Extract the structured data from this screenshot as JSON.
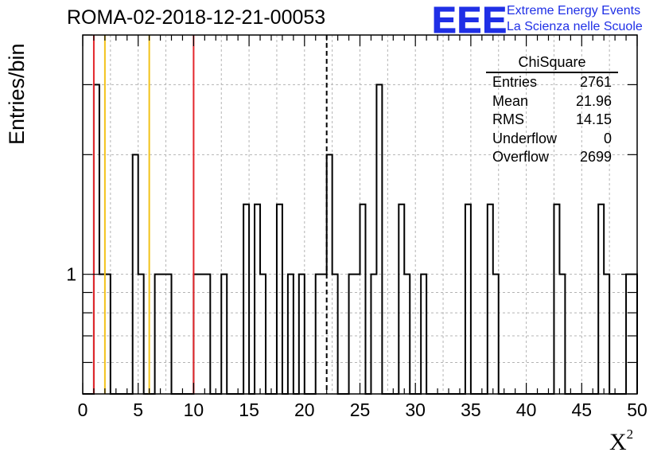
{
  "header": {
    "title": "ROMA-02-2018-12-21-00053",
    "logo_text": "EEE",
    "tagline_line1": "Extreme Energy Events",
    "tagline_line2": "La Scienza nelle Scuole"
  },
  "stats": {
    "name": "ChiSquare",
    "rows": [
      {
        "label": "Entries",
        "value": "2761"
      },
      {
        "label": "Mean",
        "value": "21.96"
      },
      {
        "label": "RMS",
        "value": "14.15"
      },
      {
        "label": "Underflow",
        "value": "0"
      },
      {
        "label": "Overflow",
        "value": "2699"
      }
    ]
  },
  "colors": {
    "background": "#ffffff",
    "histogram": "#000000",
    "grid": "#b4b4b4",
    "cut_red": "#e3262c",
    "cut_yellow": "#f2c21b",
    "mean_line": "#000000",
    "logo_blue": "#1f2fe6"
  },
  "chart_data": {
    "type": "histogram",
    "title": "ROMA-02-2018-12-21-00053",
    "xlabel": "X²",
    "ylabel": "Entries/bin",
    "y_scale": "log",
    "xlim": [
      0,
      50
    ],
    "ylim": [
      0.5,
      4
    ],
    "grid": true,
    "bin_width": 0.5,
    "x_ticks": [
      "0",
      "5",
      "10",
      "15",
      "20",
      "25",
      "30",
      "35",
      "40",
      "45",
      "50"
    ],
    "y_ticks": [
      "1"
    ],
    "bins": [
      {
        "x_low": 1.0,
        "count": 3
      },
      {
        "x_low": 1.5,
        "count": 1
      },
      {
        "x_low": 2.0,
        "count": 1
      },
      {
        "x_low": 4.5,
        "count": 2
      },
      {
        "x_low": 5.0,
        "count": 1
      },
      {
        "x_low": 6.5,
        "count": 1
      },
      {
        "x_low": 7.0,
        "count": 1
      },
      {
        "x_low": 7.5,
        "count": 1
      },
      {
        "x_low": 10.0,
        "count": 1
      },
      {
        "x_low": 10.5,
        "count": 1
      },
      {
        "x_low": 11.0,
        "count": 1
      },
      {
        "x_low": 12.5,
        "count": 1
      },
      {
        "x_low": 14.5,
        "count": 1.5
      },
      {
        "x_low": 15.5,
        "count": 1.5
      },
      {
        "x_low": 16.0,
        "count": 1
      },
      {
        "x_low": 17.5,
        "count": 1.5
      },
      {
        "x_low": 18.5,
        "count": 1
      },
      {
        "x_low": 19.5,
        "count": 1
      },
      {
        "x_low": 21.0,
        "count": 1
      },
      {
        "x_low": 21.5,
        "count": 1
      },
      {
        "x_low": 22.0,
        "count": 2
      },
      {
        "x_low": 22.5,
        "count": 1
      },
      {
        "x_low": 24.0,
        "count": 1
      },
      {
        "x_low": 24.5,
        "count": 1
      },
      {
        "x_low": 25.0,
        "count": 1.5
      },
      {
        "x_low": 26.0,
        "count": 1
      },
      {
        "x_low": 26.5,
        "count": 3
      },
      {
        "x_low": 28.5,
        "count": 1.5
      },
      {
        "x_low": 29.0,
        "count": 1
      },
      {
        "x_low": 30.5,
        "count": 1
      },
      {
        "x_low": 34.5,
        "count": 1.5
      },
      {
        "x_low": 36.5,
        "count": 1.5
      },
      {
        "x_low": 37.0,
        "count": 1
      },
      {
        "x_low": 42.5,
        "count": 1.5
      },
      {
        "x_low": 43.0,
        "count": 1
      },
      {
        "x_low": 46.5,
        "count": 1.5
      },
      {
        "x_low": 47.0,
        "count": 1
      },
      {
        "x_low": 49.0,
        "count": 1
      },
      {
        "x_low": 49.5,
        "count": 1
      }
    ],
    "vertical_lines": [
      {
        "x": 1.0,
        "color": "#e3262c",
        "style": "solid"
      },
      {
        "x": 2.0,
        "color": "#f2c21b",
        "style": "solid"
      },
      {
        "x": 6.0,
        "color": "#f2c21b",
        "style": "solid"
      },
      {
        "x": 10.0,
        "color": "#e3262c",
        "style": "solid"
      },
      {
        "x": 22.0,
        "color": "#000000",
        "style": "dashed"
      }
    ]
  }
}
